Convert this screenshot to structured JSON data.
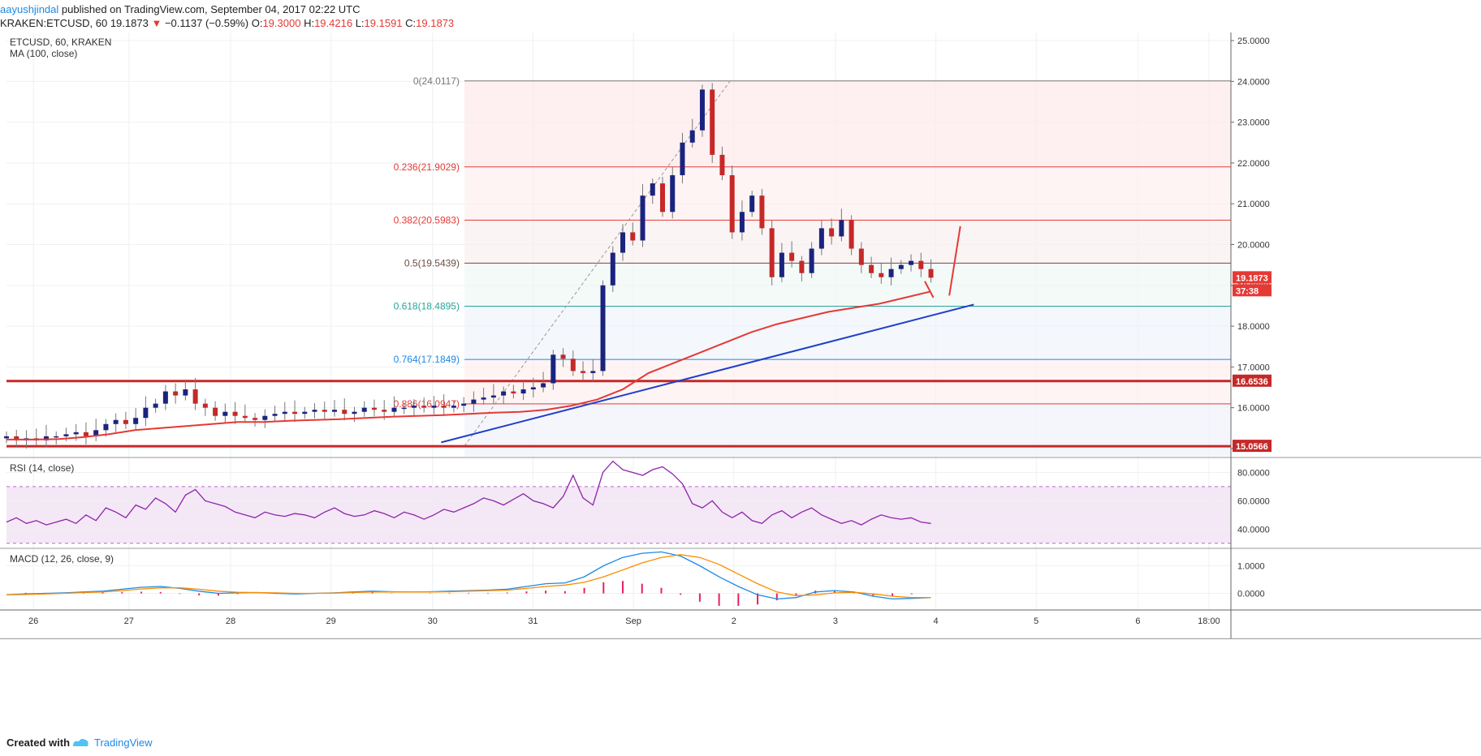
{
  "header": {
    "author": "aayushjindal",
    "published": "published on TradingView.com, September 04, 2017 02:22 UTC",
    "symbol": "KRAKEN:ETCUSD, 60",
    "last": "19.1873",
    "arrow": "▼",
    "change": "−0.1137 (−0.59%)",
    "o_label": "O:",
    "o": "19.3000",
    "h_label": "H:",
    "h": "19.4216",
    "l_label": "L:",
    "l": "19.1591",
    "c_label": "C:",
    "c": "19.1873"
  },
  "footer": {
    "created": "Created with",
    "brand": "TradingView"
  },
  "chart_data": [
    {
      "type": "candlestick",
      "title": "ETCUSD, 60, KRAKEN",
      "indicator": "MA (100, close)",
      "ylim": [
        14.8,
        25.2
      ],
      "price_ticks": [
        "25.0000",
        "24.0000",
        "23.0000",
        "22.0000",
        "21.0000",
        "20.0000",
        "19.0000",
        "18.0000",
        "17.0000",
        "16.0000",
        "15.0000"
      ],
      "x_ticks": [
        "26",
        "27",
        "28",
        "29",
        "30",
        "31",
        "Sep",
        "2",
        "3",
        "4",
        "5",
        "6",
        "18:00"
      ],
      "price_labels": [
        {
          "text": "19.1873",
          "value": 19.1873,
          "color": "#e53935"
        },
        {
          "text": "37:38",
          "value": 18.87,
          "color": "#e53935"
        },
        {
          "text": "16.6536",
          "value": 16.6536,
          "color": "#c62828"
        },
        {
          "text": "15.0566",
          "value": 15.0566,
          "color": "#c62828"
        }
      ],
      "fib_levels": [
        {
          "label": "0(24.0117)",
          "value": 24.0117,
          "color": "#777777"
        },
        {
          "label": "0.236(21.9029)",
          "value": 21.9029,
          "color": "#e53935"
        },
        {
          "label": "0.382(20.5983)",
          "value": 20.5983,
          "color": "#e53935"
        },
        {
          "label": "0.5(19.5439)",
          "value": 19.5439,
          "color": "#6d4c41"
        },
        {
          "label": "0.618(18.4895)",
          "value": 18.4895,
          "color": "#26a69a"
        },
        {
          "label": "0.764(17.1849)",
          "value": 17.1849,
          "color": "#1e88e5"
        },
        {
          "label": "0.886(16.0947)",
          "value": 16.0947,
          "color": "#e53935"
        }
      ],
      "horizontal_lines": [
        16.6536,
        15.0566
      ],
      "trendline": {
        "x": [
          0.355,
          0.79
        ],
        "y": [
          15.15,
          18.53
        ]
      },
      "close_series": [
        15.3,
        15.2,
        15.25,
        15.2,
        15.3,
        15.3,
        15.35,
        15.4,
        15.3,
        15.45,
        15.6,
        15.7,
        15.6,
        15.75,
        16.0,
        16.1,
        16.4,
        16.3,
        16.45,
        16.1,
        16.0,
        15.8,
        15.9,
        15.8,
        15.75,
        15.7,
        15.8,
        15.85,
        15.9,
        15.85,
        15.9,
        15.95,
        15.9,
        15.95,
        15.85,
        15.9,
        16.0,
        15.95,
        15.9,
        16.0,
        16.0,
        16.05,
        16.0,
        16.05,
        16.0,
        16.05,
        16.1,
        16.2,
        16.25,
        16.3,
        16.4,
        16.35,
        16.45,
        16.5,
        16.6,
        17.3,
        17.2,
        16.9,
        16.85,
        16.9,
        19.0,
        19.8,
        20.3,
        20.1,
        21.2,
        21.5,
        20.8,
        21.7,
        22.5,
        22.8,
        23.8,
        22.2,
        21.7,
        20.3,
        20.8,
        21.2,
        20.4,
        19.2,
        19.8,
        19.6,
        19.3,
        19.9,
        20.4,
        20.2,
        20.6,
        19.9,
        19.5,
        19.3,
        19.2,
        19.4,
        19.5,
        19.6,
        19.4,
        19.1873
      ],
      "ma_series": [
        15.22,
        15.22,
        15.23,
        15.28,
        15.35,
        15.45,
        15.5,
        15.55,
        15.6,
        15.65,
        15.65,
        15.68,
        15.7,
        15.72,
        15.75,
        15.78,
        15.8,
        15.82,
        15.85,
        15.88,
        15.9,
        15.95,
        16.05,
        16.2,
        16.45,
        16.85,
        17.1,
        17.35,
        17.6,
        17.85,
        18.05,
        18.2,
        18.35,
        18.45,
        18.55,
        18.7,
        18.85
      ],
      "projection": [
        {
          "x": 0.75,
          "y": 19.1
        },
        {
          "x": 0.757,
          "y": 18.7
        },
        {
          "x": 0.77,
          "y": 18.75
        },
        {
          "x": 0.779,
          "y": 20.45
        }
      ]
    },
    {
      "type": "line",
      "title": "RSI (14, close)",
      "ylim": [
        27,
        90
      ],
      "y_ticks": [
        "80.0000",
        "60.0000",
        "40.0000"
      ],
      "bands": [
        70,
        30
      ],
      "values": [
        45,
        48,
        44,
        46,
        43,
        45,
        47,
        44,
        50,
        46,
        55,
        52,
        48,
        57,
        54,
        62,
        58,
        52,
        64,
        68,
        60,
        58,
        56,
        52,
        50,
        48,
        52,
        50,
        49,
        51,
        50,
        48,
        52,
        55,
        51,
        49,
        50,
        53,
        51,
        48,
        52,
        50,
        47,
        50,
        54,
        52,
        55,
        58,
        62,
        60,
        57,
        61,
        65,
        60,
        58,
        55,
        63,
        78,
        62,
        57,
        80,
        88,
        82,
        80,
        78,
        82,
        84,
        79,
        72,
        58,
        55,
        60,
        52,
        48,
        52,
        46,
        44,
        50,
        53,
        48,
        52,
        55,
        50,
        47,
        44,
        46,
        43,
        47,
        50,
        48,
        47,
        48,
        45,
        44
      ],
      "ylabel": ""
    },
    {
      "type": "line",
      "title": "MACD (12, 26, close, 9)",
      "ylim": [
        -0.6,
        1.6
      ],
      "y_ticks": [
        "1.0000",
        "0.0000"
      ],
      "series": [
        {
          "name": "macd",
          "color": "#1e88e5",
          "values": [
            -0.05,
            -0.02,
            0,
            0.02,
            0.05,
            0.08,
            0.15,
            0.22,
            0.25,
            0.18,
            0.08,
            0.0,
            0.02,
            0.03,
            0.0,
            -0.02,
            0.0,
            0.02,
            0.05,
            0.08,
            0.06,
            0.05,
            0.06,
            0.08,
            0.1,
            0.12,
            0.15,
            0.25,
            0.35,
            0.38,
            0.6,
            1.0,
            1.3,
            1.45,
            1.5,
            1.35,
            1.0,
            0.6,
            0.25,
            -0.05,
            -0.2,
            -0.15,
            0.05,
            0.1,
            0.05,
            -0.1,
            -0.2,
            -0.18,
            -0.15
          ]
        },
        {
          "name": "signal",
          "color": "#fb8c00",
          "values": [
            -0.05,
            -0.04,
            -0.02,
            0.0,
            0.03,
            0.05,
            0.1,
            0.16,
            0.2,
            0.2,
            0.15,
            0.08,
            0.04,
            0.03,
            0.02,
            0.0,
            0.0,
            0.01,
            0.03,
            0.05,
            0.05,
            0.05,
            0.05,
            0.06,
            0.08,
            0.1,
            0.12,
            0.18,
            0.25,
            0.3,
            0.4,
            0.6,
            0.85,
            1.1,
            1.3,
            1.4,
            1.3,
            1.05,
            0.7,
            0.35,
            0.05,
            -0.08,
            -0.05,
            0.02,
            0.04,
            -0.02,
            -0.1,
            -0.15,
            -0.15
          ]
        },
        {
          "name": "histogram",
          "color": "#e91e63",
          "values": [
            0,
            0.02,
            0.02,
            0.02,
            0.02,
            0.03,
            0.05,
            0.06,
            0.05,
            -0.02,
            -0.07,
            -0.08,
            -0.02,
            0,
            -0.02,
            -0.02,
            0,
            0.01,
            0.02,
            0.03,
            0.01,
            0,
            0.01,
            0.02,
            0.02,
            0.02,
            0.03,
            0.07,
            0.1,
            0.08,
            0.2,
            0.4,
            0.45,
            0.35,
            0.2,
            -0.05,
            -0.3,
            -0.45,
            -0.45,
            -0.4,
            -0.25,
            -0.07,
            0.1,
            0.08,
            0.01,
            -0.08,
            -0.1,
            -0.03,
            0
          ]
        }
      ]
    }
  ]
}
